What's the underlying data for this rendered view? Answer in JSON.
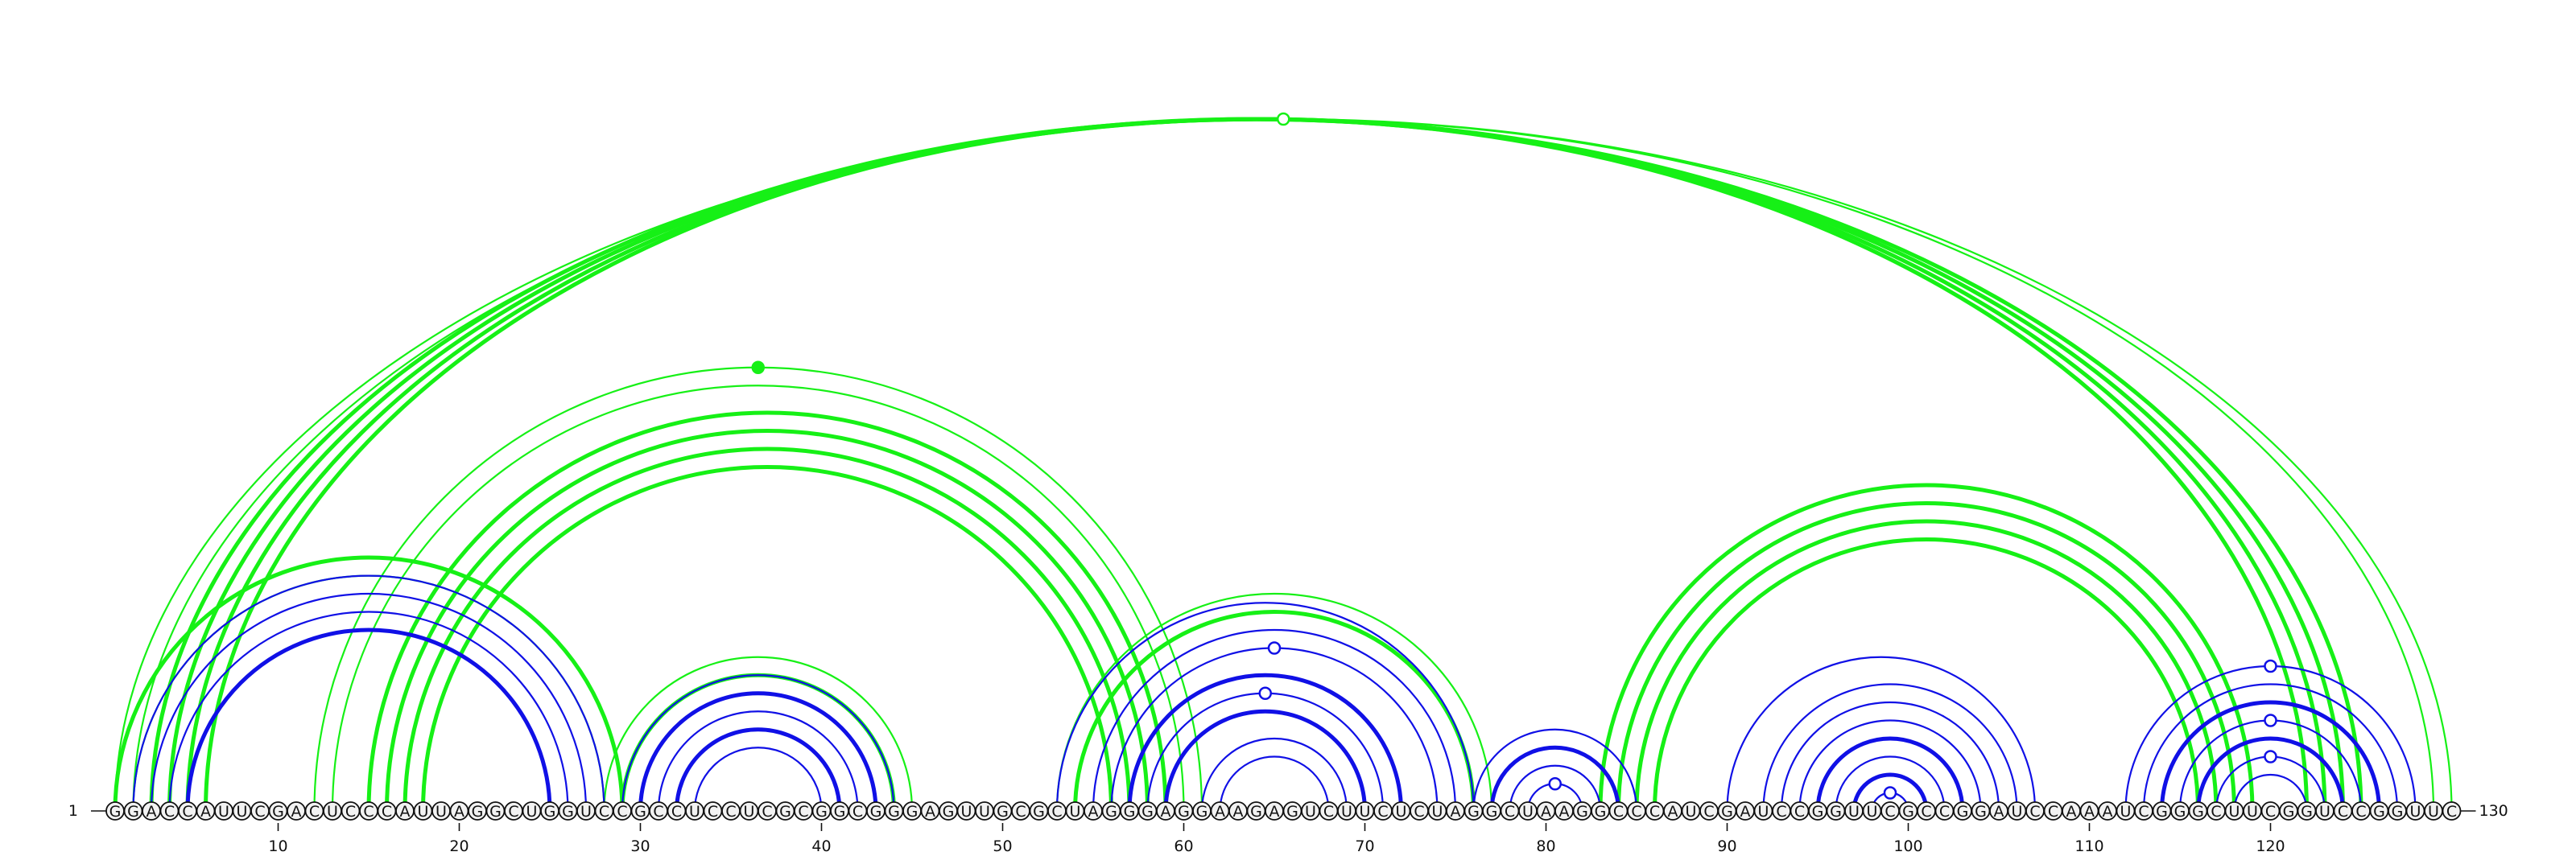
{
  "sequence": "GGACCAUUCGACUCCCAUUAGGCUGGUCCGCCUCCUCGCGGCGGGAGUUGCGCUAGGGAGGAAGAGUCUUCUCUAGGCUAAGGCCCAUCGAUCCGGUUCGCCGGAUCCAAAUCGGGCUUCGGUCCGGUUC",
  "start_label": "1",
  "end_label": "130",
  "axis_ticks": [
    10,
    20,
    30,
    40,
    50,
    60,
    70,
    80,
    90,
    100,
    110,
    120
  ],
  "colors": {
    "inner_arcs": "#1010e6",
    "outer_arcs": "#16f016",
    "nucleotide_fill": "#f2f2f2",
    "outline": "#111111"
  },
  "inner_arc_groups": [
    {
      "pairs": [
        [
          2,
          28
        ],
        [
          3,
          27
        ],
        [
          4,
          26
        ],
        [
          5,
          25
        ]
      ],
      "thick": [
        3
      ]
    },
    {
      "pairs": [
        [
          29,
          44
        ],
        [
          30,
          43
        ],
        [
          31,
          42
        ],
        [
          32,
          41
        ],
        [
          33,
          40
        ]
      ],
      "thick": [
        1,
        3
      ]
    },
    {
      "pairs": [
        [
          53,
          76
        ],
        [
          55,
          75
        ],
        [
          56,
          74
        ],
        [
          57,
          72
        ],
        [
          58,
          71
        ],
        [
          59,
          70
        ],
        [
          61,
          69
        ],
        [
          62,
          68
        ]
      ],
      "thick": [
        3,
        5
      ],
      "dots": [
        2,
        4
      ]
    },
    {
      "pairs": [
        [
          76,
          85
        ],
        [
          77,
          84
        ],
        [
          78,
          83
        ],
        [
          79,
          82
        ]
      ],
      "thick": [
        1
      ],
      "dots": [
        3
      ]
    },
    {
      "pairs": [
        [
          90,
          107
        ],
        [
          92,
          106
        ],
        [
          93,
          105
        ],
        [
          94,
          104
        ],
        [
          95,
          103
        ],
        [
          96,
          102
        ],
        [
          97,
          101
        ],
        [
          98,
          100
        ]
      ],
      "thick": [
        4,
        6
      ],
      "dots": [
        7
      ]
    },
    {
      "pairs": [
        [
          112,
          128
        ],
        [
          113,
          127
        ],
        [
          114,
          126
        ],
        [
          115,
          125
        ],
        [
          116,
          124
        ],
        [
          117,
          123
        ],
        [
          118,
          122
        ]
      ],
      "thick": [
        2,
        4
      ],
      "dots": [
        0,
        3,
        5
      ]
    }
  ],
  "outer_arc_groups": [
    {
      "pairs": [
        [
          1,
          130
        ],
        [
          2,
          129
        ]
      ],
      "thick": [],
      "dots": [
        0
      ],
      "dot_filled": false
    },
    {
      "pairs": [
        [
          3,
          125
        ],
        [
          4,
          124
        ],
        [
          5,
          123
        ],
        [
          6,
          122
        ]
      ],
      "thick": [
        0,
        1,
        2,
        3
      ]
    },
    {
      "pairs": [
        [
          12,
          61
        ],
        [
          13,
          60
        ],
        [
          15,
          59
        ],
        [
          16,
          58
        ],
        [
          17,
          57
        ],
        [
          18,
          56
        ]
      ],
      "thick": [
        2,
        3,
        4,
        5
      ],
      "dots": [
        0
      ],
      "dot_filled": true
    },
    {
      "pairs": [
        [
          1,
          29
        ],
        [
          2,
          28
        ]
      ],
      "thick": [
        0
      ]
    },
    {
      "pairs": [
        [
          28,
          45
        ],
        [
          29,
          44
        ]
      ],
      "thick": [
        1
      ]
    },
    {
      "pairs": [
        [
          53,
          77
        ],
        [
          54,
          76
        ]
      ],
      "thick": [
        1
      ]
    },
    {
      "pairs": [
        [
          83,
          119
        ],
        [
          84,
          118
        ],
        [
          85,
          117
        ],
        [
          86,
          116
        ]
      ],
      "thick": [
        0,
        1,
        2,
        3
      ]
    }
  ]
}
